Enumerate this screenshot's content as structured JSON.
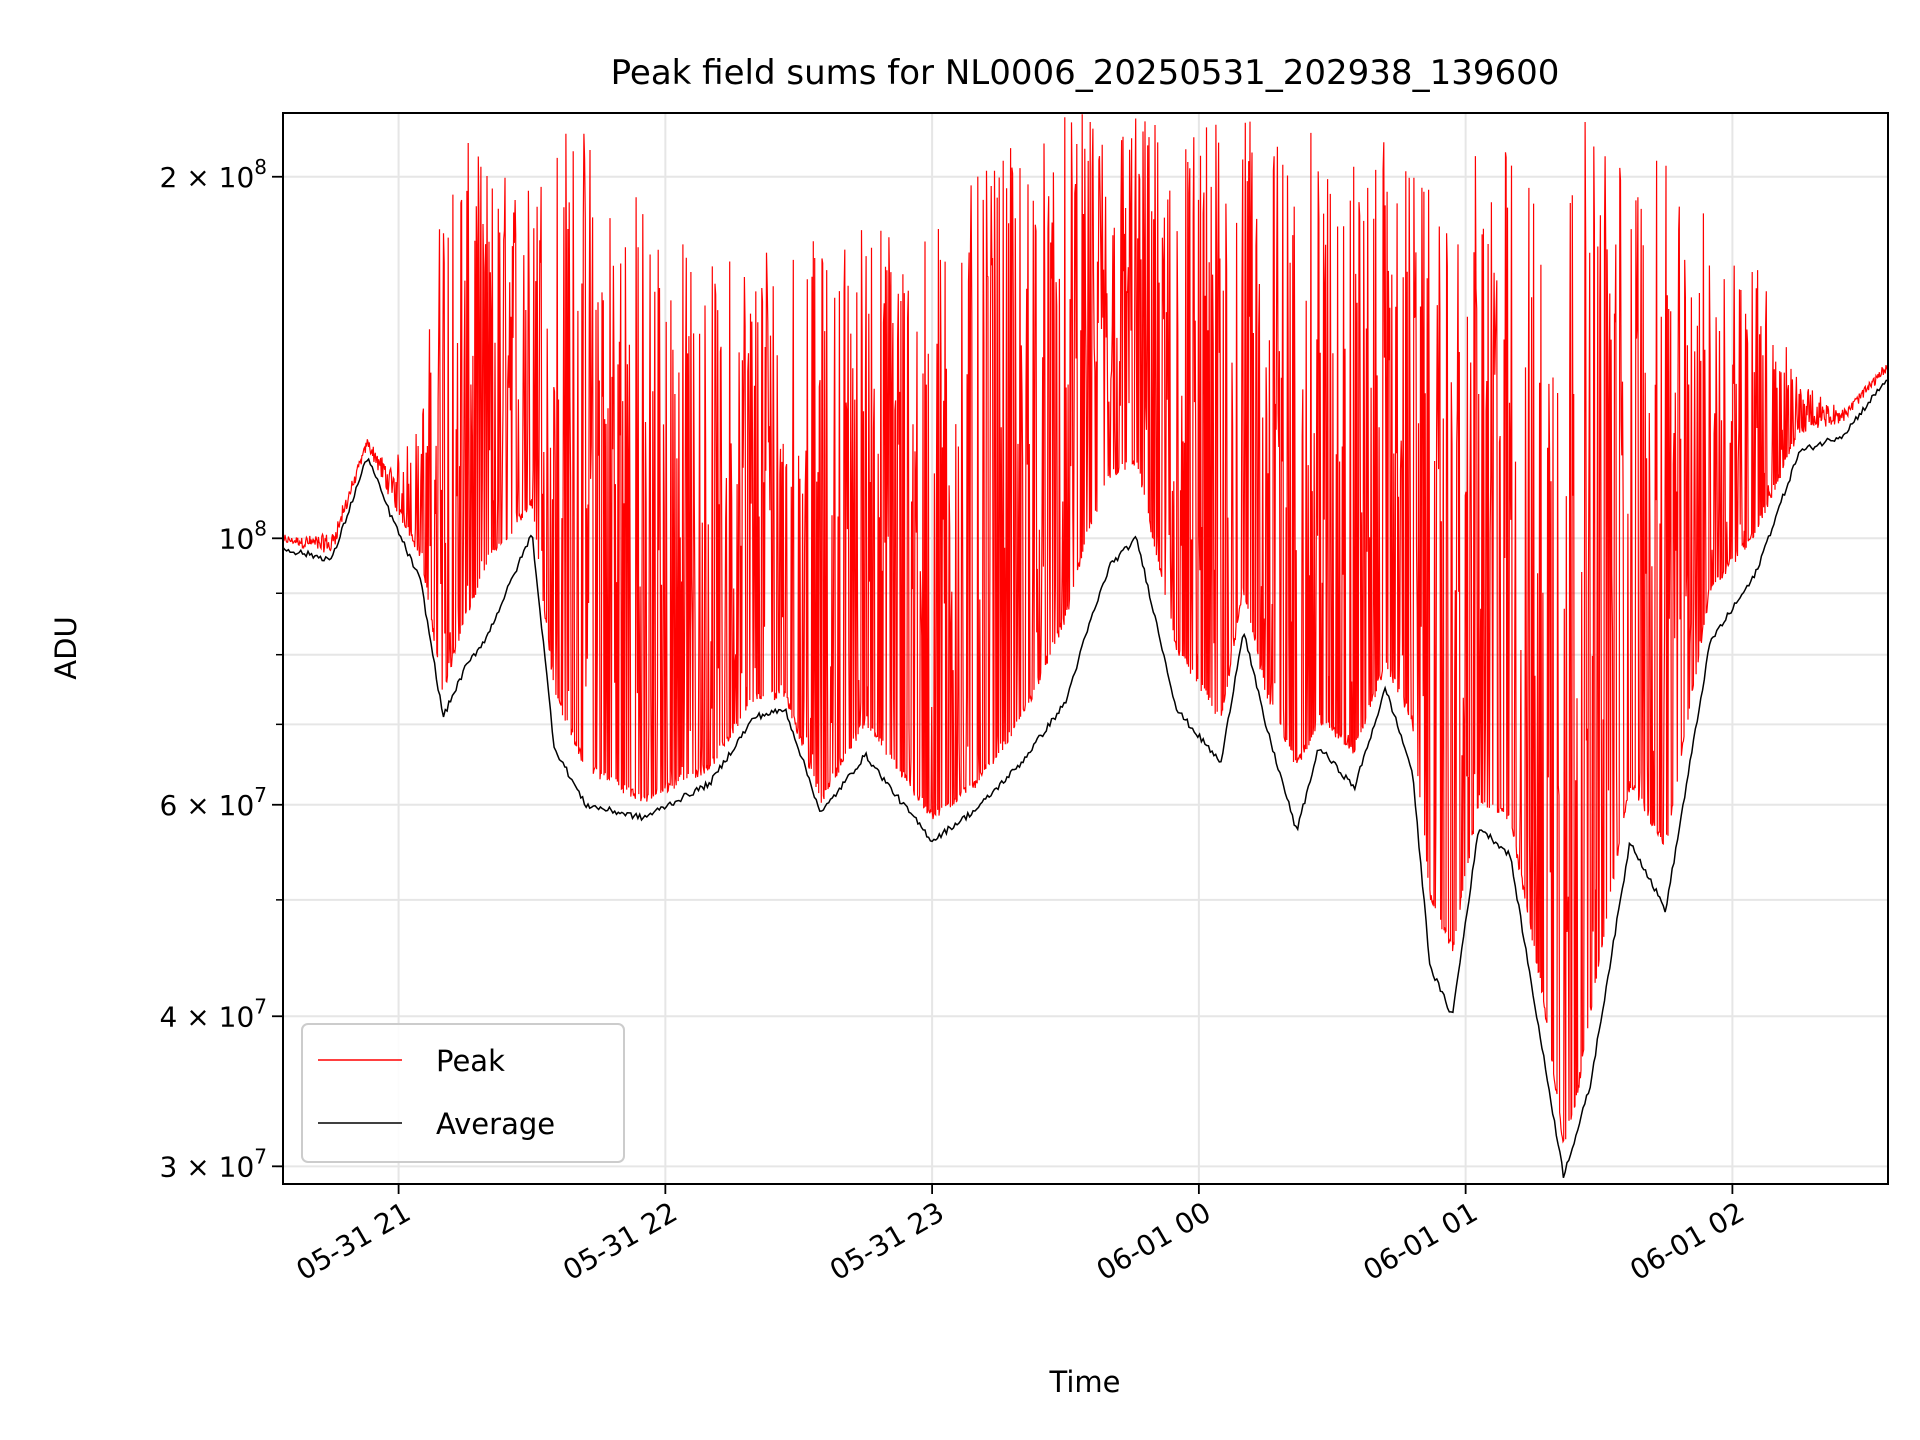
{
  "chart_data": {
    "type": "line",
    "title": "Peak field sums for NL0006_20250531_202938_139600",
    "xlabel": "Time",
    "ylabel": "ADU",
    "yscale": "log",
    "ylim": [
      29000000,
      226000000
    ],
    "xlim": [
      "2025-05-31 20:34",
      "2025-06-01 02:35"
    ],
    "x_ticks": [
      "05-31 21",
      "05-31 22",
      "05-31 23",
      "06-01 00",
      "06-01 01",
      "06-01 02"
    ],
    "y_ticks": [
      {
        "value": 30000000,
        "label_mantissa": "3",
        "label_exp": "7"
      },
      {
        "value": 40000000,
        "label_mantissa": "4",
        "label_exp": "7"
      },
      {
        "value": 60000000,
        "label_mantissa": "6",
        "label_exp": "7"
      },
      {
        "value": 100000000,
        "label_mantissa": "",
        "label_exp": "8"
      },
      {
        "value": 200000000,
        "label_mantissa": "2",
        "label_exp": "8"
      }
    ],
    "grid": true,
    "legend_position": "lower-left",
    "series": [
      {
        "name": "Average",
        "color": "#000000",
        "x": [
          "2025-05-31 20:34",
          "2025-05-31 20:45",
          "2025-05-31 20:53",
          "2025-05-31 20:58",
          "2025-05-31 21:05",
          "2025-05-31 21:10",
          "2025-05-31 21:15",
          "2025-05-31 21:20",
          "2025-05-31 21:30",
          "2025-05-31 21:35",
          "2025-05-31 21:42",
          "2025-05-31 21:55",
          "2025-05-31 22:10",
          "2025-05-31 22:20",
          "2025-05-31 22:27",
          "2025-05-31 22:35",
          "2025-05-31 22:45",
          "2025-05-31 22:52",
          "2025-05-31 23:00",
          "2025-05-31 23:10",
          "2025-05-31 23:20",
          "2025-05-31 23:30",
          "2025-05-31 23:35",
          "2025-05-31 23:40",
          "2025-05-31 23:46",
          "2025-05-31 23:55",
          "2025-06-01 00:05",
          "2025-06-01 00:10",
          "2025-06-01 00:15",
          "2025-06-01 00:22",
          "2025-06-01 00:27",
          "2025-06-01 00:35",
          "2025-06-01 00:42",
          "2025-06-01 00:48",
          "2025-06-01 00:52",
          "2025-06-01 00:57",
          "2025-06-01 01:03",
          "2025-06-01 01:10",
          "2025-06-01 01:17",
          "2025-06-01 01:22",
          "2025-06-01 01:25",
          "2025-06-01 01:28",
          "2025-06-01 01:37",
          "2025-06-01 01:45",
          "2025-06-01 01:55",
          "2025-06-01 02:05",
          "2025-06-01 02:15",
          "2025-06-01 02:25",
          "2025-06-01 02:35"
        ],
        "y": [
          98000000,
          96000000,
          117000000,
          105000000,
          92000000,
          71000000,
          78000000,
          83000000,
          101000000,
          67000000,
          60000000,
          58500000,
          62500000,
          71000000,
          72000000,
          59000000,
          66000000,
          61000000,
          56000000,
          59500000,
          65000000,
          73000000,
          84000000,
          95000000,
          100000000,
          72000000,
          65000000,
          84000000,
          70000000,
          57000000,
          67000000,
          62000000,
          75000000,
          64000000,
          44000000,
          40000000,
          57500000,
          54500000,
          38000000,
          29500000,
          32000000,
          35000000,
          56000000,
          49000000,
          82000000,
          93000000,
          118000000,
          122000000,
          136000000
        ]
      },
      {
        "name": "Peak",
        "color": "#ff0000",
        "x": [
          "2025-05-31 20:34",
          "2025-05-31 20:45",
          "2025-05-31 20:53",
          "2025-05-31 20:58",
          "2025-05-31 21:05",
          "2025-05-31 21:10",
          "2025-05-31 21:15",
          "2025-05-31 21:20",
          "2025-05-31 21:30",
          "2025-05-31 21:35",
          "2025-05-31 21:42",
          "2025-05-31 21:55",
          "2025-05-31 22:10",
          "2025-05-31 22:20",
          "2025-05-31 22:27",
          "2025-05-31 22:35",
          "2025-05-31 22:45",
          "2025-05-31 22:52",
          "2025-05-31 23:00",
          "2025-05-31 23:10",
          "2025-05-31 23:20",
          "2025-05-31 23:30",
          "2025-05-31 23:35",
          "2025-05-31 23:40",
          "2025-05-31 23:46",
          "2025-05-31 23:55",
          "2025-06-01 00:05",
          "2025-06-01 00:10",
          "2025-06-01 00:15",
          "2025-06-01 00:22",
          "2025-06-01 00:27",
          "2025-06-01 00:35",
          "2025-06-01 00:42",
          "2025-06-01 00:48",
          "2025-06-01 00:52",
          "2025-06-01 00:57",
          "2025-06-01 01:03",
          "2025-06-01 01:10",
          "2025-06-01 01:17",
          "2025-06-01 01:22",
          "2025-06-01 01:25",
          "2025-06-01 01:28",
          "2025-06-01 01:37",
          "2025-06-01 01:45",
          "2025-06-01 01:55",
          "2025-06-01 02:05",
          "2025-06-01 02:15",
          "2025-06-01 02:25",
          "2025-06-01 02:35"
        ],
        "y_low": [
          99000000,
          97000000,
          119000000,
          108000000,
          96000000,
          74000000,
          85000000,
          95000000,
          106000000,
          74000000,
          64000000,
          60000000,
          64000000,
          73000000,
          73500000,
          60000000,
          70000000,
          64000000,
          58000000,
          62000000,
          70000000,
          85000000,
          100000000,
          112000000,
          115000000,
          80000000,
          70000000,
          90000000,
          74000000,
          64000000,
          70000000,
          66000000,
          78000000,
          70000000,
          50000000,
          45000000,
          60000000,
          58000000,
          42000000,
          31000000,
          34000000,
          40000000,
          62000000,
          55000000,
          90000000,
          100000000,
          122000000,
          125000000,
          138000000
        ],
        "y_high": [
          100000000,
          101000000,
          121000000,
          115000000,
          125000000,
          205000000,
          215000000,
          205000000,
          200000000,
          225000000,
          225000000,
          195000000,
          170000000,
          180000000,
          190000000,
          175000000,
          190000000,
          185000000,
          185000000,
          200000000,
          215000000,
          226000000,
          226000000,
          226000000,
          226000000,
          226000000,
          226000000,
          226000000,
          218000000,
          215000000,
          220000000,
          210000000,
          215000000,
          205000000,
          195000000,
          175000000,
          215000000,
          215000000,
          200000000,
          205000000,
          225000000,
          226000000,
          210000000,
          205000000,
          185000000,
          175000000,
          135000000,
          128000000,
          140000000
        ]
      }
    ]
  }
}
